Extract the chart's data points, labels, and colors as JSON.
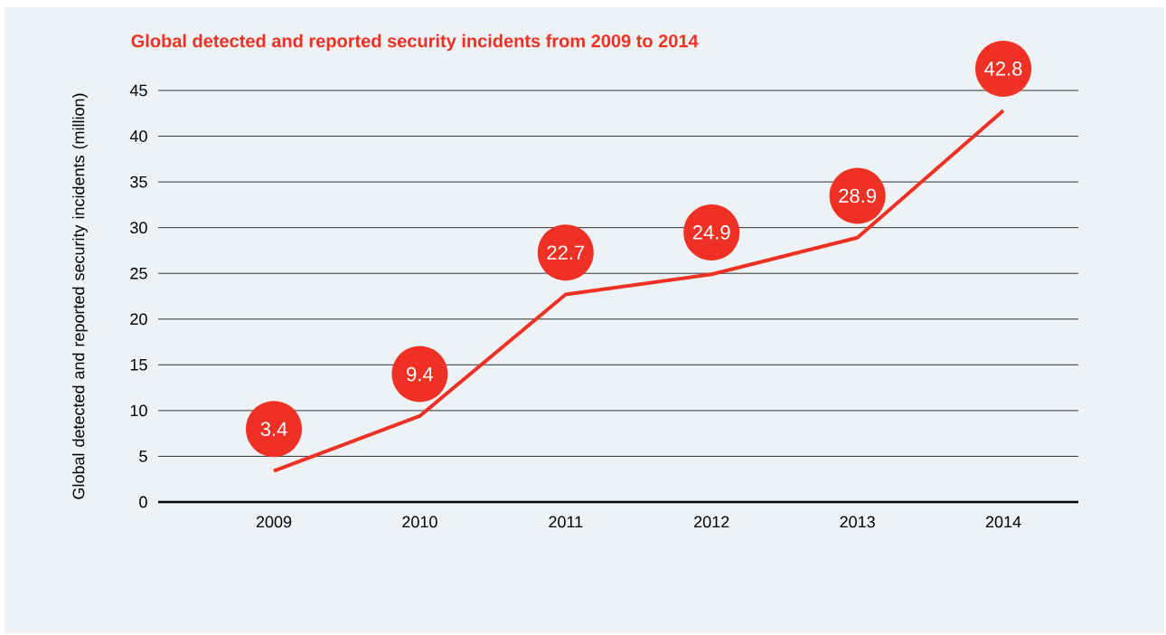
{
  "chart_data": {
    "type": "line",
    "title": "Global detected and reported security incidents from 2009 to 2014",
    "ylabel": "Global detected and reported security incidents (million)",
    "categories": [
      "2009",
      "2010",
      "2011",
      "2012",
      "2013",
      "2014"
    ],
    "values": [
      3.4,
      9.4,
      22.7,
      24.9,
      28.9,
      42.8
    ],
    "color": "#ee3124",
    "ylim": [
      0,
      45
    ],
    "yticks": [
      0,
      5,
      10,
      15,
      20,
      25,
      30,
      35,
      40,
      45
    ],
    "grid": "y",
    "marker": "none",
    "line_style": "solid",
    "data_labels": true
  }
}
